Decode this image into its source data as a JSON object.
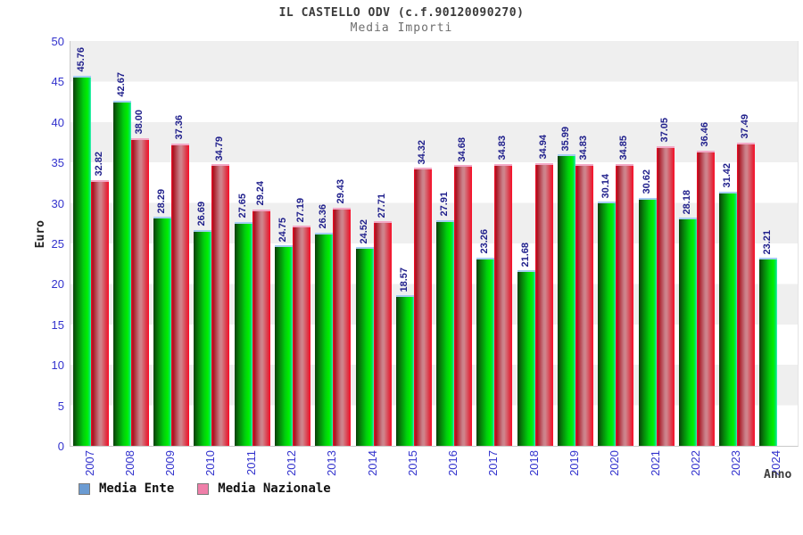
{
  "title": "IL CASTELLO ODV (c.f.90120090270)",
  "subtitle": "Media Importi",
  "y_axis_title": "Euro",
  "x_axis_title": "Anno",
  "legend": [
    {
      "label": "Media Ente",
      "swatch_color": "#6b9bd2"
    },
    {
      "label": "Media Nazionale",
      "swatch_color": "#ef7fa9"
    }
  ],
  "colors": {
    "bar_ente": "#00c800",
    "bar_nazionale": "#e02838",
    "tick_label": "#3232cd",
    "value_label": "#20208c",
    "band_gray": "#efefef"
  },
  "chart_data": {
    "type": "bar",
    "title": "IL CASTELLO ODV (c.f.90120090270)",
    "subtitle": "Media Importi",
    "xlabel": "Anno",
    "ylabel": "Euro",
    "ylim": [
      0,
      50
    ],
    "ytick_step": 5,
    "grid": "horizontal-bands",
    "legend_position": "bottom-left",
    "categories": [
      "2007",
      "2008",
      "2009",
      "2010",
      "2011",
      "2012",
      "2013",
      "2014",
      "2015",
      "2016",
      "2017",
      "2018",
      "2019",
      "2020",
      "2021",
      "2022",
      "2023",
      "2024"
    ],
    "series": [
      {
        "name": "Media Ente",
        "values": [
          "45.76",
          "42.67",
          "28.29",
          "26.69",
          "27.65",
          "24.75",
          "26.36",
          "24.52",
          "18.57",
          "27.91",
          "23.26",
          "21.68",
          "35.99",
          "30.14",
          "30.62",
          "28.18",
          "31.42",
          "23.21"
        ]
      },
      {
        "name": "Media Nazionale",
        "values": [
          "32.82",
          "38.00",
          "37.36",
          "34.79",
          "29.24",
          "27.19",
          "29.43",
          "27.71",
          "34.32",
          "34.68",
          "34.83",
          "34.94",
          "34.83",
          "34.85",
          "37.05",
          "36.46",
          "37.49",
          null
        ]
      }
    ]
  }
}
